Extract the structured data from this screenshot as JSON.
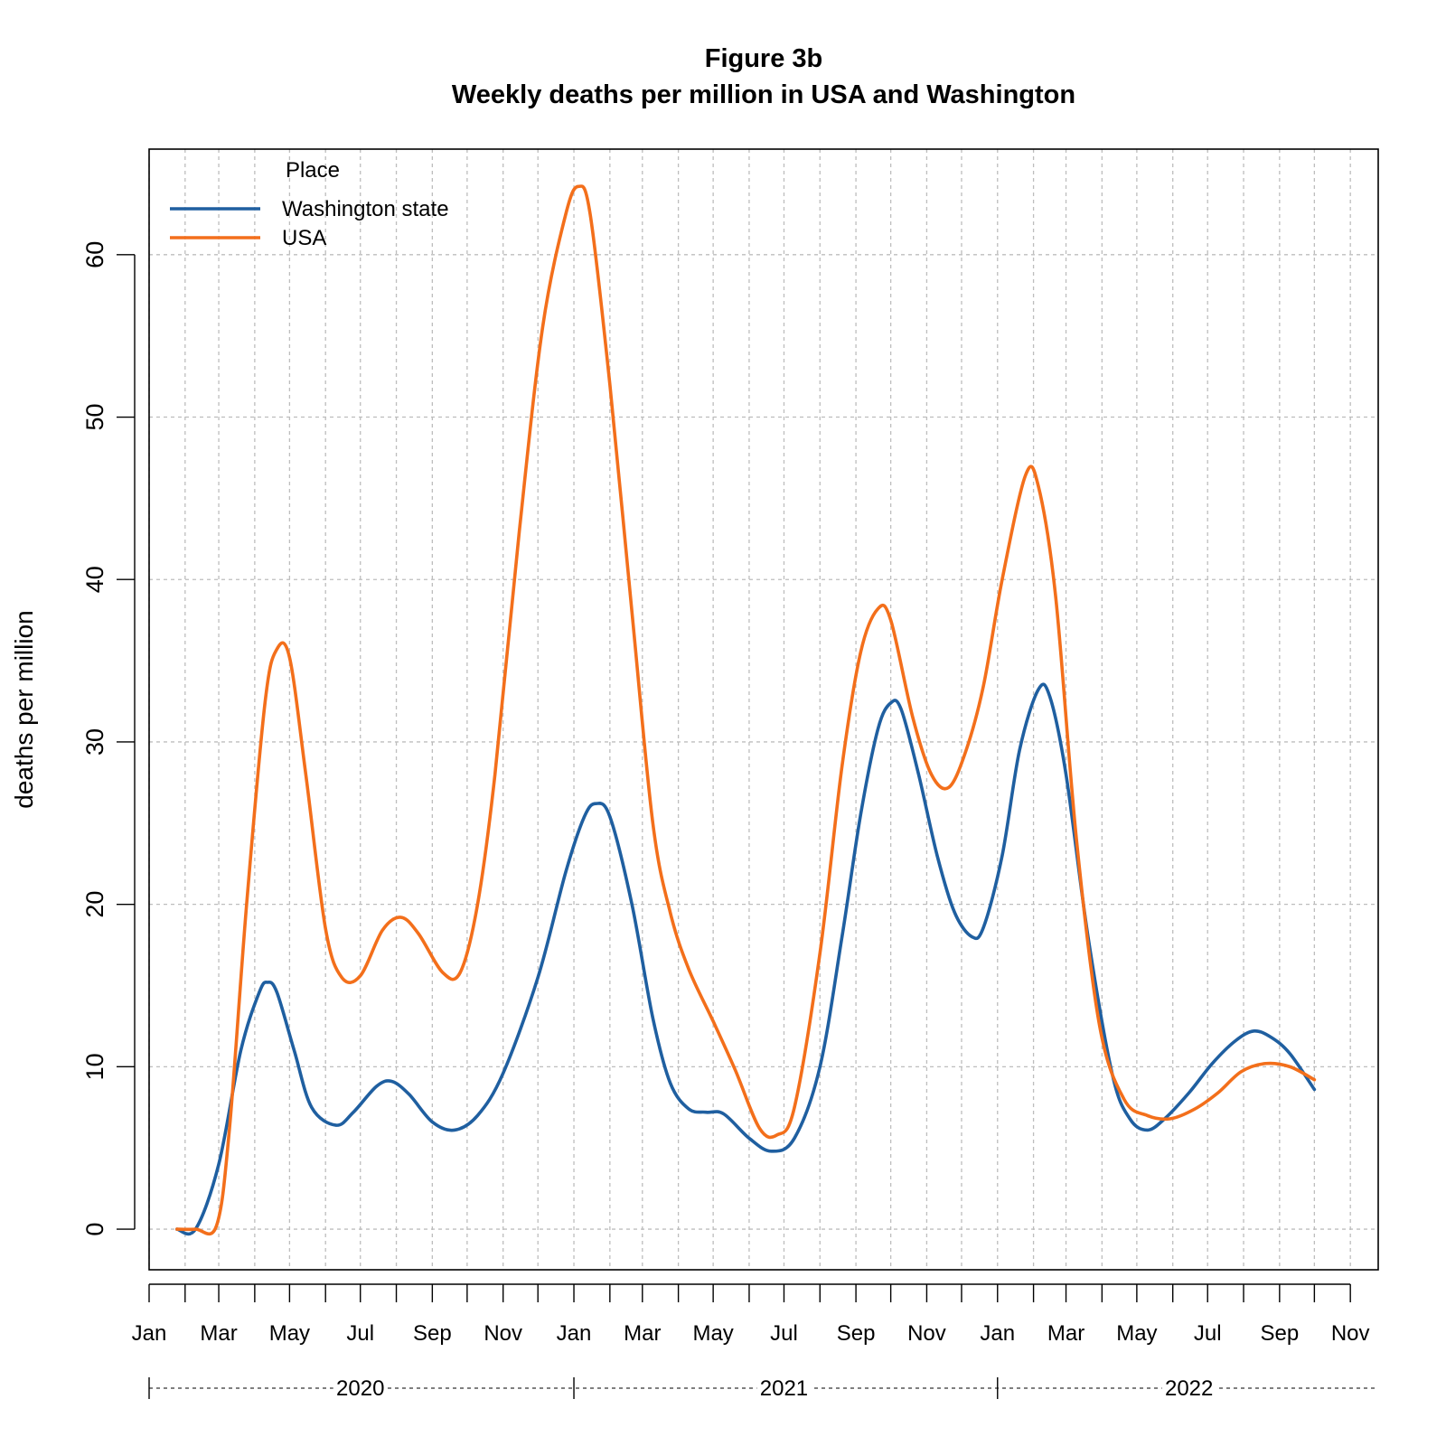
{
  "chart_data": {
    "type": "line",
    "title": "Figure 3b",
    "subtitle": "Weekly deaths per million in USA and Washington",
    "xlabel": "",
    "ylabel": "deaths per million",
    "ylim": [
      -2.5,
      66.5
    ],
    "xlim": [
      "2020-01-01",
      "2022-11-25"
    ],
    "grid": true,
    "legend": {
      "title": "Place",
      "position": "top-left"
    },
    "y_ticks": [
      0,
      10,
      20,
      30,
      40,
      50,
      60
    ],
    "x_ticks": [
      {
        "date": "2020-01-01",
        "label": "Jan"
      },
      {
        "date": "2020-02-01",
        "label": ""
      },
      {
        "date": "2020-03-01",
        "label": "Mar"
      },
      {
        "date": "2020-04-01",
        "label": ""
      },
      {
        "date": "2020-05-01",
        "label": "May"
      },
      {
        "date": "2020-06-01",
        "label": ""
      },
      {
        "date": "2020-07-01",
        "label": "Jul"
      },
      {
        "date": "2020-08-01",
        "label": ""
      },
      {
        "date": "2020-09-01",
        "label": "Sep"
      },
      {
        "date": "2020-10-01",
        "label": ""
      },
      {
        "date": "2020-11-01",
        "label": "Nov"
      },
      {
        "date": "2020-12-01",
        "label": ""
      },
      {
        "date": "2021-01-01",
        "label": "Jan"
      },
      {
        "date": "2021-02-01",
        "label": ""
      },
      {
        "date": "2021-03-01",
        "label": "Mar"
      },
      {
        "date": "2021-04-01",
        "label": ""
      },
      {
        "date": "2021-05-01",
        "label": "May"
      },
      {
        "date": "2021-06-01",
        "label": ""
      },
      {
        "date": "2021-07-01",
        "label": "Jul"
      },
      {
        "date": "2021-08-01",
        "label": ""
      },
      {
        "date": "2021-09-01",
        "label": "Sep"
      },
      {
        "date": "2021-10-01",
        "label": ""
      },
      {
        "date": "2021-11-01",
        "label": "Nov"
      },
      {
        "date": "2021-12-01",
        "label": ""
      },
      {
        "date": "2022-01-01",
        "label": "Jan"
      },
      {
        "date": "2022-02-01",
        "label": ""
      },
      {
        "date": "2022-03-01",
        "label": "Mar"
      },
      {
        "date": "2022-04-01",
        "label": ""
      },
      {
        "date": "2022-05-01",
        "label": "May"
      },
      {
        "date": "2022-06-01",
        "label": ""
      },
      {
        "date": "2022-07-01",
        "label": "Jul"
      },
      {
        "date": "2022-08-01",
        "label": ""
      },
      {
        "date": "2022-09-01",
        "label": "Sep"
      },
      {
        "date": "2022-10-01",
        "label": ""
      },
      {
        "date": "2022-11-01",
        "label": "Nov"
      }
    ],
    "year_labels": [
      {
        "label": "2020",
        "date": "2020-07-01",
        "start": "2020-01-01"
      },
      {
        "label": "2021",
        "date": "2021-07-01",
        "start": "2021-01-01"
      },
      {
        "label": "2022",
        "date": "2022-06-15",
        "start": "2022-01-01"
      }
    ],
    "series": [
      {
        "name": "Washington state",
        "color": "#1f5fa0",
        "points": [
          [
            "2020-01-25",
            0
          ],
          [
            "2020-02-10",
            0
          ],
          [
            "2020-03-01",
            4
          ],
          [
            "2020-03-20",
            11
          ],
          [
            "2020-04-05",
            14.6
          ],
          [
            "2020-04-12",
            15.2
          ],
          [
            "2020-04-20",
            14.6
          ],
          [
            "2020-05-05",
            11
          ],
          [
            "2020-05-20",
            7.5
          ],
          [
            "2020-06-10",
            6.4
          ],
          [
            "2020-06-25",
            7.2
          ],
          [
            "2020-07-15",
            8.8
          ],
          [
            "2020-07-28",
            9.1
          ],
          [
            "2020-08-12",
            8.3
          ],
          [
            "2020-09-01",
            6.6
          ],
          [
            "2020-09-20",
            6.1
          ],
          [
            "2020-10-10",
            7.0
          ],
          [
            "2020-11-01",
            9.6
          ],
          [
            "2020-12-01",
            15.5
          ],
          [
            "2020-12-25",
            22
          ],
          [
            "2021-01-10",
            25.4
          ],
          [
            "2021-01-20",
            26.2
          ],
          [
            "2021-02-01",
            25.4
          ],
          [
            "2021-02-20",
            20
          ],
          [
            "2021-03-10",
            13
          ],
          [
            "2021-03-25",
            9
          ],
          [
            "2021-04-10",
            7.4
          ],
          [
            "2021-04-25",
            7.2
          ],
          [
            "2021-05-10",
            7.1
          ],
          [
            "2021-06-01",
            5.6
          ],
          [
            "2021-06-20",
            4.8
          ],
          [
            "2021-07-10",
            5.6
          ],
          [
            "2021-08-01",
            10
          ],
          [
            "2021-08-20",
            18
          ],
          [
            "2021-09-05",
            25.5
          ],
          [
            "2021-09-20",
            30.8
          ],
          [
            "2021-10-01",
            32.4
          ],
          [
            "2021-10-10",
            32
          ],
          [
            "2021-10-25",
            28
          ],
          [
            "2021-11-10",
            23
          ],
          [
            "2021-11-25",
            19.5
          ],
          [
            "2021-12-10",
            18
          ],
          [
            "2021-12-20",
            18.6
          ],
          [
            "2022-01-05",
            23
          ],
          [
            "2022-01-20",
            29.5
          ],
          [
            "2022-02-05",
            33.2
          ],
          [
            "2022-02-15",
            32.8
          ],
          [
            "2022-03-01",
            28
          ],
          [
            "2022-03-20",
            18
          ],
          [
            "2022-04-10",
            9.5
          ],
          [
            "2022-04-25",
            6.8
          ],
          [
            "2022-05-10",
            6.1
          ],
          [
            "2022-05-25",
            6.8
          ],
          [
            "2022-06-15",
            8.4
          ],
          [
            "2022-07-05",
            10.2
          ],
          [
            "2022-07-25",
            11.6
          ],
          [
            "2022-08-10",
            12.2
          ],
          [
            "2022-08-25",
            11.8
          ],
          [
            "2022-09-10",
            10.8
          ],
          [
            "2022-10-01",
            8.6
          ]
        ]
      },
      {
        "name": "USA",
        "color": "#f36f1b",
        "points": [
          [
            "2020-01-25",
            0
          ],
          [
            "2020-02-10",
            0
          ],
          [
            "2020-02-28",
            0.2
          ],
          [
            "2020-03-10",
            6
          ],
          [
            "2020-03-25",
            20
          ],
          [
            "2020-04-10",
            32.5
          ],
          [
            "2020-04-20",
            35.7
          ],
          [
            "2020-05-01",
            35.2
          ],
          [
            "2020-05-15",
            28
          ],
          [
            "2020-06-01",
            18.5
          ],
          [
            "2020-06-15",
            15.5
          ],
          [
            "2020-07-01",
            15.6
          ],
          [
            "2020-07-20",
            18.4
          ],
          [
            "2020-08-05",
            19.2
          ],
          [
            "2020-08-20",
            18.2
          ],
          [
            "2020-09-10",
            15.8
          ],
          [
            "2020-09-25",
            15.8
          ],
          [
            "2020-10-10",
            20
          ],
          [
            "2020-10-25",
            28
          ],
          [
            "2020-11-15",
            43
          ],
          [
            "2020-12-05",
            55.5
          ],
          [
            "2020-12-25",
            62.5
          ],
          [
            "2021-01-05",
            64.2
          ],
          [
            "2021-01-15",
            62.5
          ],
          [
            "2021-02-01",
            52
          ],
          [
            "2021-02-20",
            38
          ],
          [
            "2021-03-10",
            25
          ],
          [
            "2021-03-25",
            19.5
          ],
          [
            "2021-04-10",
            16
          ],
          [
            "2021-05-01",
            12.8
          ],
          [
            "2021-05-20",
            9.8
          ],
          [
            "2021-06-10",
            6.2
          ],
          [
            "2021-06-25",
            5.8
          ],
          [
            "2021-07-10",
            7.5
          ],
          [
            "2021-08-01",
            17
          ],
          [
            "2021-08-20",
            28.5
          ],
          [
            "2021-09-05",
            35.5
          ],
          [
            "2021-09-20",
            38.2
          ],
          [
            "2021-10-01",
            37.5
          ],
          [
            "2021-10-20",
            31.5
          ],
          [
            "2021-11-05",
            28
          ],
          [
            "2021-11-20",
            27.2
          ],
          [
            "2021-12-05",
            29.5
          ],
          [
            "2021-12-20",
            33.5
          ],
          [
            "2022-01-05",
            40
          ],
          [
            "2022-01-25",
            46.4
          ],
          [
            "2022-02-05",
            45.8
          ],
          [
            "2022-02-20",
            39
          ],
          [
            "2022-03-10",
            24
          ],
          [
            "2022-03-30",
            12.5
          ],
          [
            "2022-04-20",
            8
          ],
          [
            "2022-05-10",
            7
          ],
          [
            "2022-05-30",
            6.8
          ],
          [
            "2022-06-20",
            7.4
          ],
          [
            "2022-07-10",
            8.4
          ],
          [
            "2022-07-30",
            9.7
          ],
          [
            "2022-08-20",
            10.2
          ],
          [
            "2022-09-10",
            10
          ],
          [
            "2022-10-01",
            9.2
          ]
        ]
      }
    ]
  }
}
